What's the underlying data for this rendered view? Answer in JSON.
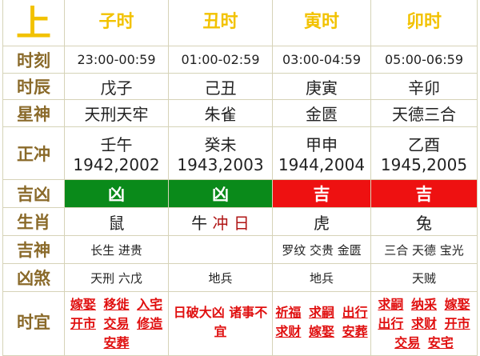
{
  "header": {
    "corner": "上",
    "hours": [
      "子时",
      "丑时",
      "寅时",
      "卯时"
    ]
  },
  "labels": {
    "time": "时刻",
    "ganzhi": "时辰",
    "star": "星神",
    "chong": "正冲",
    "jixiong": "吉凶",
    "zodiac": "生肖",
    "jishen": "吉神",
    "xiongsha": "凶煞",
    "yi": "时宜"
  },
  "time": [
    "23:00-00:59",
    "01:00-02:59",
    "03:00-04:59",
    "05:00-06:59"
  ],
  "ganzhi": [
    "戊子",
    "己丑",
    "庚寅",
    "辛卯"
  ],
  "star": [
    "天刑天牢",
    "朱雀",
    "金匮",
    "天德三合"
  ],
  "chong": [
    {
      "gz": "壬午",
      "years": "1942,2002"
    },
    {
      "gz": "癸未",
      "years": "1943,2003"
    },
    {
      "gz": "甲申",
      "years": "1944,2004"
    },
    {
      "gz": "乙酉",
      "years": "1945,2005"
    }
  ],
  "jixiong": [
    "凶",
    "凶",
    "吉",
    "吉"
  ],
  "colors": {
    "xiong": "#0a8a1a",
    "ji": "#ee1111",
    "label": "#8a6a2a",
    "header": "#f2c200"
  },
  "zodiac": [
    "鼠",
    {
      "animal": "牛",
      "clash": "冲",
      "day": "日"
    },
    "虎",
    "兔"
  ],
  "jishen": [
    "长生 进贵",
    "",
    "罗纹 交贵 金匮",
    "三合 天德 宝光"
  ],
  "xiongsha": [
    "天刑 六戊",
    "地兵",
    "地兵",
    "天贼"
  ],
  "yi": [
    [
      "嫁娶",
      "移徙",
      "入宅",
      "开市",
      "交易",
      "修造",
      "安葬"
    ],
    [
      "日破大凶 诸事不宜"
    ],
    [
      "祈福",
      "求嗣",
      "出行",
      "求财",
      "嫁娶",
      "安葬"
    ],
    [
      "求嗣",
      "纳采",
      "嫁娶",
      "出行",
      "求财",
      "开市",
      "交易",
      "安宅"
    ]
  ]
}
